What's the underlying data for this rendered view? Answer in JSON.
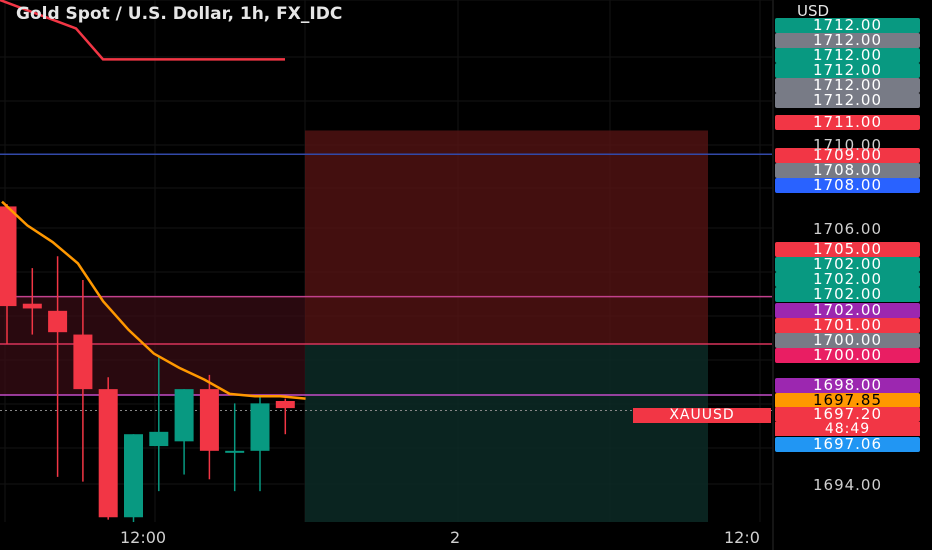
{
  "header": {
    "title": "Gold Spot / U.S. Dollar, 1h, FX_IDC",
    "currency": "USD"
  },
  "symbol": "XAUUSD",
  "countdown": "48:49",
  "axis": {
    "ticks": [
      "1710.00",
      "1706.00",
      "1694.00"
    ],
    "x_ticks": [
      "12:00",
      "2",
      "12:0"
    ]
  },
  "price_labels": [
    {
      "value": "1712.00",
      "color": "#089981"
    },
    {
      "value": "1712.00",
      "color": "#787b86"
    },
    {
      "value": "1712.00",
      "color": "#089981"
    },
    {
      "value": "1712.00",
      "color": "#089981"
    },
    {
      "value": "1712.00",
      "color": "#787b86"
    },
    {
      "value": "1712.00",
      "color": "#787b86"
    },
    {
      "value": "1711.00",
      "color": "#f23645"
    },
    {
      "value": "1709.00",
      "color": "#f23645"
    },
    {
      "value": "1708.00",
      "color": "#787b86"
    },
    {
      "value": "1708.00",
      "color": "#2962ff"
    },
    {
      "value": "1705.00",
      "color": "#f23645"
    },
    {
      "value": "1702.00",
      "color": "#089981"
    },
    {
      "value": "1702.00",
      "color": "#089981"
    },
    {
      "value": "1702.00",
      "color": "#089981"
    },
    {
      "value": "1702.00",
      "color": "#9c27b0"
    },
    {
      "value": "1701.00",
      "color": "#f23645"
    },
    {
      "value": "1700.00",
      "color": "#787b86"
    },
    {
      "value": "1700.00",
      "color": "#e91e63"
    },
    {
      "value": "1698.00",
      "color": "#9c27b0"
    },
    {
      "value": "1697.85",
      "color": "#ff9800"
    },
    {
      "value": "1697.20",
      "color": "#f23645"
    },
    {
      "value": "1697.06",
      "color": "#2196f3"
    }
  ],
  "chart_data": {
    "type": "candlestick",
    "ylim": [
      1692.5,
      1714.5
    ],
    "candles": [
      {
        "o": 1705.8,
        "h": 1705.9,
        "l": 1700.0,
        "c": 1701.6
      },
      {
        "o": 1701.7,
        "h": 1703.2,
        "l": 1700.4,
        "c": 1701.5
      },
      {
        "o": 1701.4,
        "h": 1703.7,
        "l": 1694.4,
        "c": 1700.5
      },
      {
        "o": 1700.4,
        "h": 1702.7,
        "l": 1694.2,
        "c": 1698.1
      },
      {
        "o": 1698.1,
        "h": 1698.6,
        "l": 1692.6,
        "c": 1692.7
      },
      {
        "o": 1692.7,
        "h": 1696.2,
        "l": 1692.5,
        "c": 1696.2
      },
      {
        "o": 1695.7,
        "h": 1699.5,
        "l": 1693.8,
        "c": 1696.3
      },
      {
        "o": 1695.9,
        "h": 1698.1,
        "l": 1694.5,
        "c": 1698.1
      },
      {
        "o": 1698.1,
        "h": 1698.7,
        "l": 1694.3,
        "c": 1695.5
      },
      {
        "o": 1695.5,
        "h": 1697.5,
        "l": 1693.8,
        "c": 1695.5
      },
      {
        "o": 1695.5,
        "h": 1697.8,
        "l": 1693.8,
        "c": 1697.5
      },
      {
        "o": 1697.6,
        "h": 1697.7,
        "l": 1696.2,
        "c": 1697.3
      }
    ],
    "ma_line": [
      1706.0,
      1705.0,
      1704.3,
      1703.4,
      1701.8,
      1700.6,
      1699.6,
      1699.0,
      1698.5,
      1697.9,
      1697.8,
      1697.8,
      1697.7
    ],
    "upper_line": [
      1714.5,
      1713.8,
      1713.3,
      1712.0,
      1712.0,
      1712.0,
      1712.0,
      1712.0,
      1712.0,
      1712.0,
      1712.0,
      1712.0
    ],
    "hlines": [
      {
        "price": 1708.0,
        "color": "#3249a8"
      },
      {
        "price": 1702.0,
        "color": "#c2418d"
      },
      {
        "price": 1700.0,
        "color": "#d8335a"
      },
      {
        "price": 1697.85,
        "color": "#c34cc7"
      },
      {
        "price": 1697.2,
        "color": "#888888",
        "dashed": true
      }
    ],
    "position_box": {
      "stop": 1709.0,
      "entry": 1700.0,
      "target": 1692.5
    },
    "x_label_prices": []
  }
}
